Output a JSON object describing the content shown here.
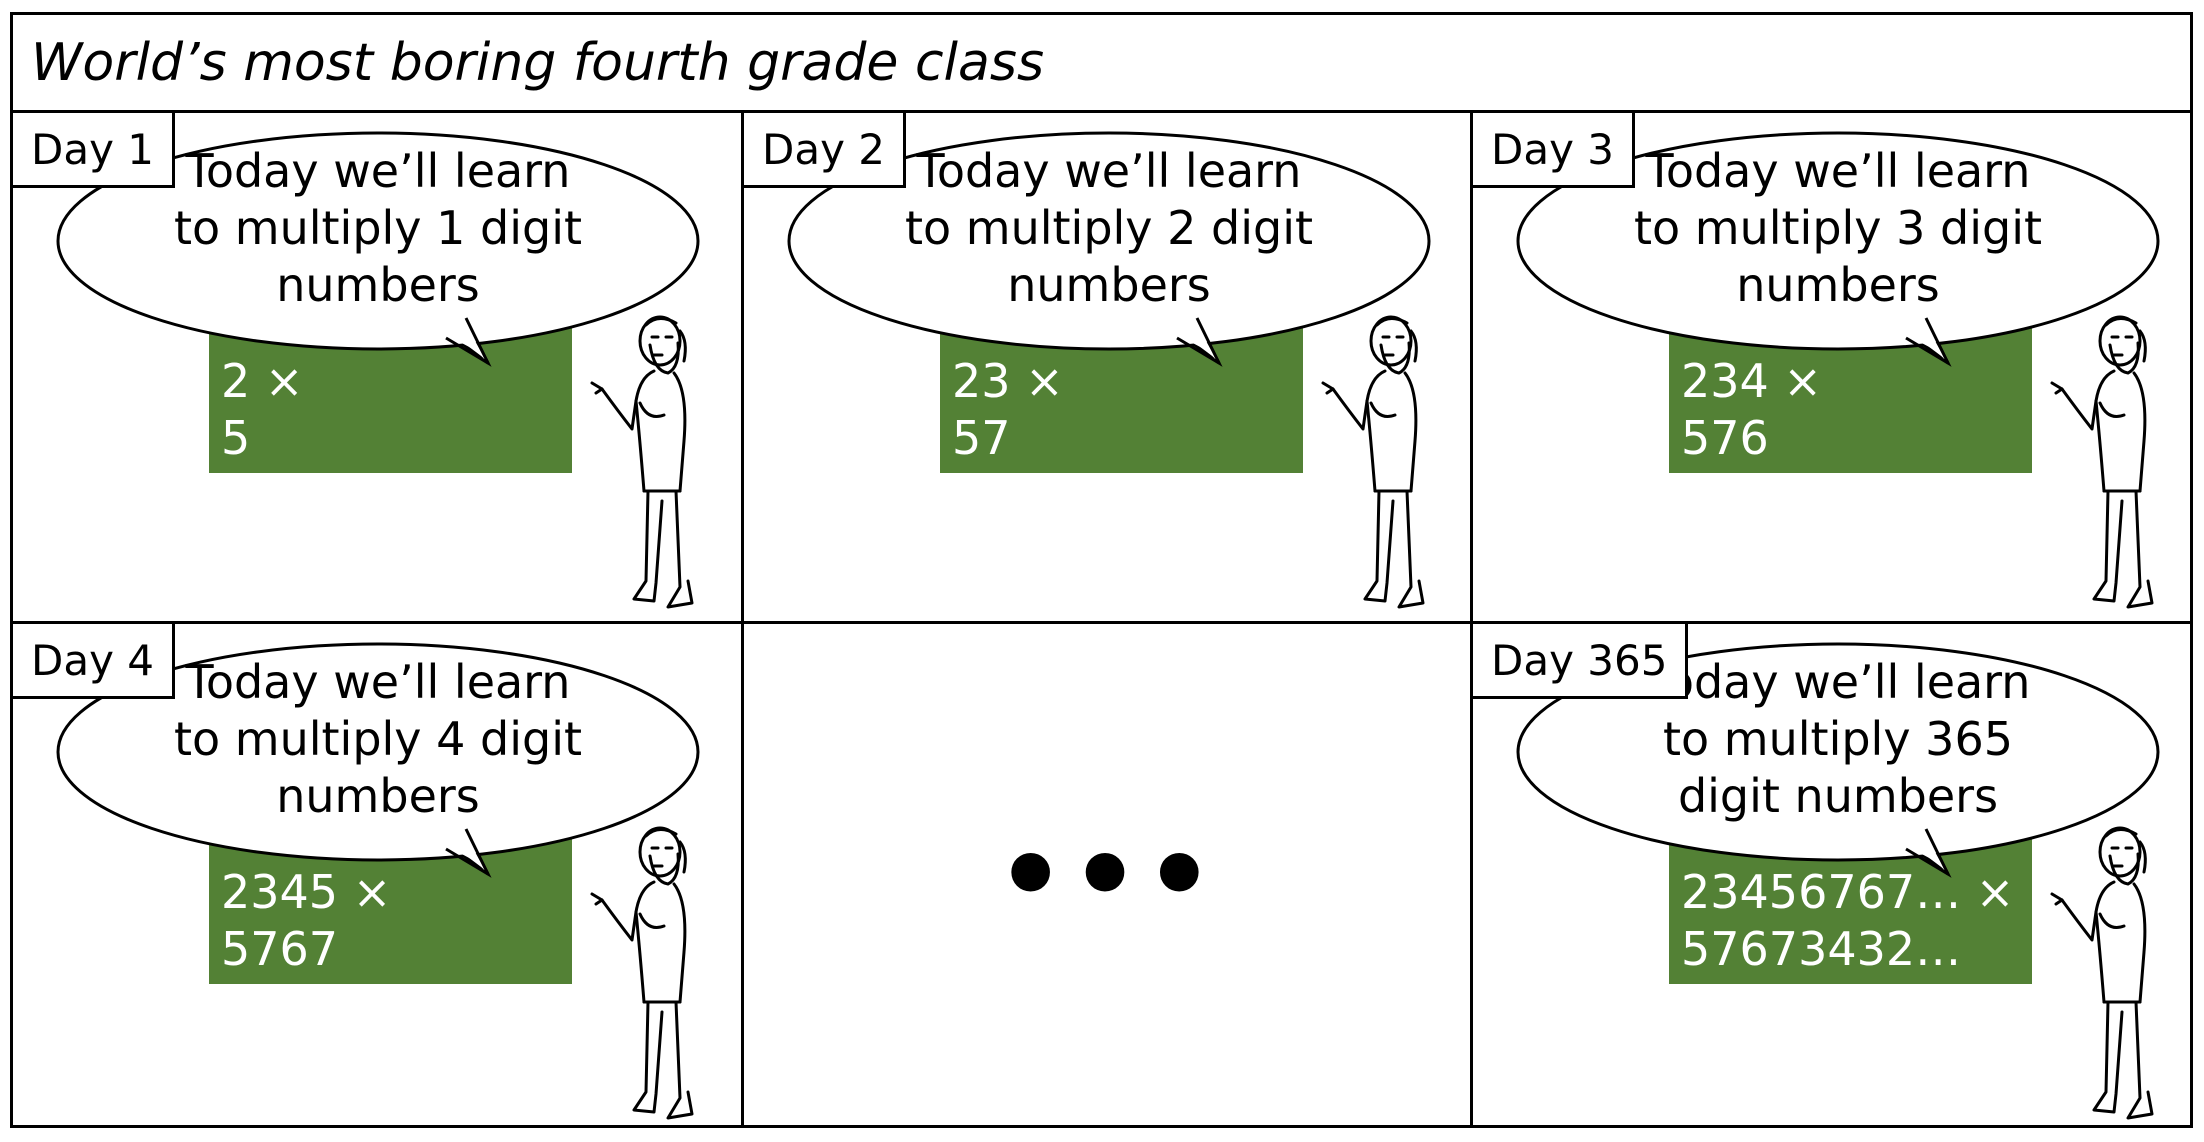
{
  "title": "World’s most boring fourth grade class",
  "panels": [
    {
      "day": "Day 1",
      "speech": [
        "Today we’ll learn",
        "to multiply 1 digit",
        "numbers"
      ],
      "board": [
        "2 ×",
        "5"
      ]
    },
    {
      "day": "Day 2",
      "speech": [
        "Today we’ll learn",
        "to multiply 2 digit",
        "numbers"
      ],
      "board": [
        "23 ×",
        "57"
      ]
    },
    {
      "day": "Day 3",
      "speech": [
        "Today we’ll learn",
        "to multiply 3 digit",
        "numbers"
      ],
      "board": [
        "234 ×",
        "576"
      ]
    },
    {
      "day": "Day 4",
      "speech": [
        "Today we’ll learn",
        "to multiply 4 digit",
        "numbers"
      ],
      "board": [
        "2345 ×",
        "5767"
      ]
    },
    {
      "day": "Day 365",
      "speech": [
        "Today we’ll learn",
        "to multiply 365",
        "digit numbers"
      ],
      "board": [
        "23456767… ×",
        "57673432…"
      ]
    }
  ],
  "ellipsis": "•••",
  "colors": {
    "board": "#538135",
    "board_text": "#ffffff",
    "ink": "#000000"
  }
}
